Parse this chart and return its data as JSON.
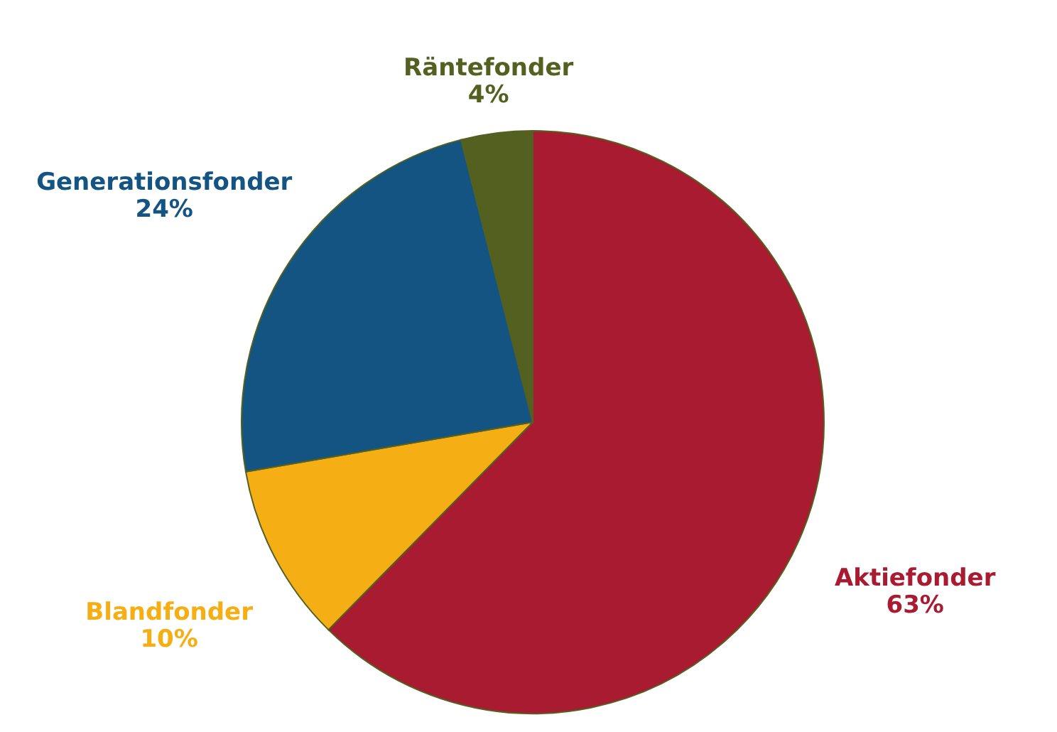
{
  "chart_data": {
    "type": "pie",
    "categories": [
      "Aktiefonder",
      "Blandfonder",
      "Generationsfonder",
      "Räntefonder"
    ],
    "values": [
      63,
      10,
      24,
      4
    ],
    "value_labels": [
      "63%",
      "10%",
      "24%",
      "4%"
    ],
    "colors": [
      "#a91b30",
      "#f5ae14",
      "#135483",
      "#546020"
    ]
  }
}
